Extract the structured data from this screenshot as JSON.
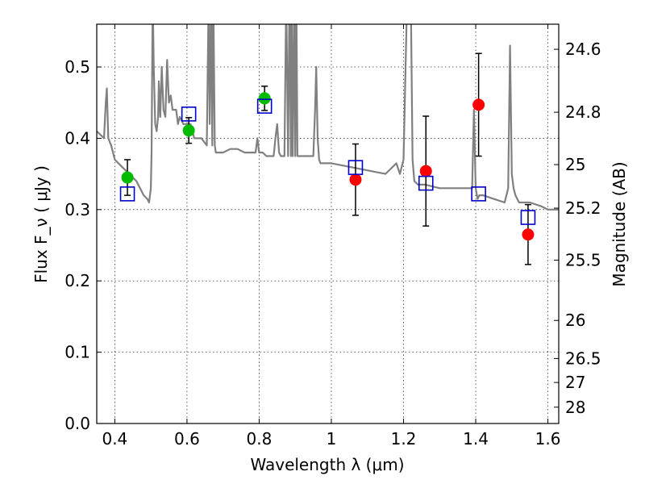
{
  "chart_data": {
    "type": "scatter",
    "xlabel": "Wavelength  λ (μm)",
    "ylabel": "Flux  F_ν  ( μJy )",
    "y2label": "Magnitude (AB)",
    "xlim": [
      0.35,
      1.63
    ],
    "ylim": [
      0.0,
      0.56
    ],
    "grid": true,
    "x_ticks": [
      "0.4",
      "0.6",
      "0.8",
      "1",
      "1.2",
      "1.4",
      "1.6"
    ],
    "y_ticks": [
      "0.0",
      "0.1",
      "0.2",
      "0.3",
      "0.4",
      "0.5"
    ],
    "magnitude_ticks": [
      "24.6",
      "24.8",
      "25",
      "25.2",
      "25.5",
      "26",
      "26.5",
      "27",
      "28"
    ],
    "colors": {
      "spectrum": "#808080",
      "green_points": "#00bb00",
      "red_points": "#ff0000",
      "model_squares": "#0000cc",
      "errorbars": "#000000"
    },
    "spectrum": {
      "name": "",
      "x": [
        0.35,
        0.37,
        0.375,
        0.378,
        0.382,
        0.39,
        0.4,
        0.42,
        0.44,
        0.46,
        0.48,
        0.49,
        0.495,
        0.5,
        0.502,
        0.505,
        0.508,
        0.512,
        0.516,
        0.518,
        0.52,
        0.522,
        0.526,
        0.53,
        0.535,
        0.54,
        0.545,
        0.55,
        0.555,
        0.56,
        0.57,
        0.575,
        0.58,
        0.59,
        0.6,
        0.61,
        0.62,
        0.64,
        0.655,
        0.66,
        0.663,
        0.667,
        0.67,
        0.673,
        0.677,
        0.68,
        0.69,
        0.7,
        0.72,
        0.74,
        0.76,
        0.78,
        0.79,
        0.795,
        0.8,
        0.81,
        0.82,
        0.83,
        0.84,
        0.845,
        0.85,
        0.855,
        0.86,
        0.865,
        0.87,
        0.875,
        0.88,
        0.884,
        0.888,
        0.89,
        0.893,
        0.897,
        0.9,
        0.903,
        0.906,
        0.91,
        0.93,
        0.95,
        0.955,
        0.958,
        0.962,
        0.966,
        0.97,
        1.0,
        1.05,
        1.1,
        1.15,
        1.18,
        1.19,
        1.2,
        1.21,
        1.215,
        1.22,
        1.225,
        1.23,
        1.24,
        1.26,
        1.3,
        1.35,
        1.39,
        1.395,
        1.4,
        1.405,
        1.41,
        1.42,
        1.45,
        1.48,
        1.49,
        1.495,
        1.5,
        1.505,
        1.51,
        1.52,
        1.55,
        1.58,
        1.6,
        1.63
      ],
      "y": [
        0.41,
        0.4,
        0.45,
        0.47,
        0.4,
        0.39,
        0.37,
        0.36,
        0.35,
        0.34,
        0.32,
        0.315,
        0.31,
        0.33,
        0.38,
        0.6,
        0.5,
        0.42,
        0.41,
        0.42,
        0.43,
        0.48,
        0.43,
        0.5,
        0.44,
        0.43,
        0.51,
        0.45,
        0.46,
        0.44,
        0.44,
        0.42,
        0.43,
        0.42,
        0.42,
        0.42,
        0.4,
        0.4,
        0.39,
        0.6,
        0.42,
        0.6,
        0.39,
        0.6,
        0.39,
        0.38,
        0.38,
        0.38,
        0.385,
        0.385,
        0.38,
        0.38,
        0.38,
        0.4,
        0.38,
        0.38,
        0.375,
        0.375,
        0.375,
        0.4,
        0.42,
        0.38,
        0.375,
        0.375,
        0.375,
        0.6,
        0.375,
        0.6,
        0.375,
        0.6,
        0.375,
        0.6,
        0.375,
        0.6,
        0.375,
        0.375,
        0.375,
        0.375,
        0.44,
        0.5,
        0.4,
        0.37,
        0.365,
        0.365,
        0.36,
        0.355,
        0.35,
        0.365,
        0.35,
        0.37,
        0.6,
        0.6,
        0.6,
        0.37,
        0.34,
        0.335,
        0.335,
        0.33,
        0.33,
        0.33,
        0.44,
        0.33,
        0.315,
        0.32,
        0.32,
        0.315,
        0.31,
        0.33,
        0.53,
        0.35,
        0.33,
        0.32,
        0.31,
        0.31,
        0.305,
        0.3,
        0.3
      ]
    },
    "series": [
      {
        "name": "",
        "marker": "circle",
        "color": "#00bb00",
        "x": [
          0.435,
          0.605,
          0.815
        ],
        "y": [
          0.345,
          0.411,
          0.456
        ],
        "yerr": [
          0.025,
          0.018,
          0.017
        ]
      },
      {
        "name": "",
        "marker": "circle",
        "color": "#ff0000",
        "x": [
          1.067,
          1.262,
          1.408,
          1.545
        ],
        "y": [
          0.342,
          0.354,
          0.447,
          0.265
        ],
        "yerr": [
          0.05,
          0.077,
          0.072,
          0.042
        ]
      },
      {
        "name": "",
        "marker": "open-square",
        "color": "#0000cc",
        "x": [
          0.435,
          0.605,
          0.815,
          1.067,
          1.262,
          1.408,
          1.545
        ],
        "y": [
          0.322,
          0.434,
          0.445,
          0.359,
          0.337,
          0.322,
          0.289
        ]
      }
    ]
  }
}
